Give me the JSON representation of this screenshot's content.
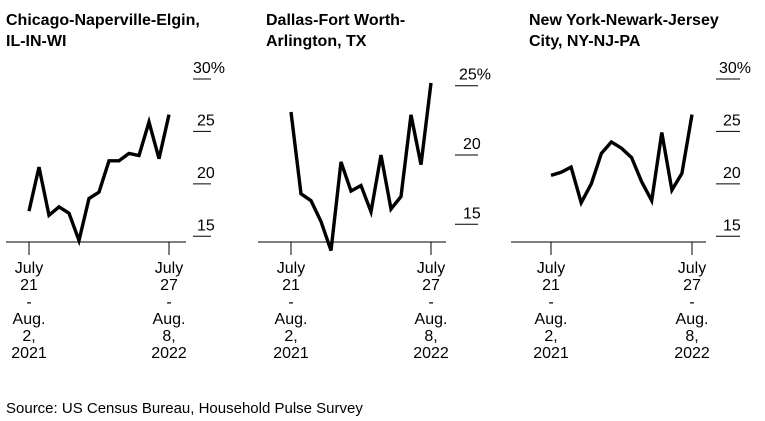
{
  "source": "Source: US Census Bureau, Household Pulse Survey",
  "colors": {
    "line": "#000000",
    "background": "#ffffff"
  },
  "chart_data": [
    {
      "type": "line",
      "title_lines": [
        "Chicago-Naperville-Elgin,",
        "IL-IN-WI"
      ],
      "x_tick_labels": [
        {
          "lines": [
            "July",
            "21",
            "-",
            "Aug.",
            "2,",
            "2021"
          ]
        },
        {
          "lines": [
            "July",
            "27",
            "-",
            "Aug.",
            "8,",
            "2022"
          ]
        }
      ],
      "y_ticks": [
        {
          "value": 30,
          "label": "30%"
        },
        {
          "value": 25,
          "label": "25"
        },
        {
          "value": 20,
          "label": "20"
        },
        {
          "value": 15,
          "label": "15"
        }
      ],
      "ylim": [
        13.5,
        32
      ],
      "grid": false,
      "series": [
        {
          "values": [
            17.4,
            21.6,
            17.0,
            17.8,
            17.2,
            14.6,
            18.6,
            19.2,
            22.2,
            22.2,
            22.9,
            22.7,
            25.9,
            22.4,
            26.6
          ]
        }
      ]
    },
    {
      "type": "line",
      "title_lines": [
        "Dallas-Fort Worth-",
        "Arlington, TX"
      ],
      "x_tick_labels": [
        {
          "lines": [
            "July",
            "21",
            "-",
            "Aug.",
            "2,",
            "2021"
          ]
        },
        {
          "lines": [
            "July",
            "27",
            "-",
            "Aug.",
            "8,",
            "2022"
          ]
        }
      ],
      "y_ticks": [
        {
          "value": 25,
          "label": "25%"
        },
        {
          "value": 20,
          "label": "20"
        },
        {
          "value": 15,
          "label": "15"
        }
      ],
      "ylim": [
        13.0,
        27.0
      ],
      "grid": false,
      "series": [
        {
          "values": [
            23.1,
            17.2,
            16.7,
            15.2,
            13.1,
            19.5,
            17.4,
            17.8,
            15.9,
            20.0,
            16.1,
            17.0,
            22.9,
            19.3,
            25.2
          ]
        }
      ]
    },
    {
      "type": "line",
      "title_lines": [
        "New York-Newark-Jersey",
        "City, NY-NJ-PA"
      ],
      "x_tick_labels": [
        {
          "lines": [
            "July",
            "21",
            "-",
            "Aug.",
            "2,",
            "2021"
          ]
        },
        {
          "lines": [
            "July",
            "27",
            "-",
            "Aug.",
            "8,",
            "2022"
          ]
        }
      ],
      "y_ticks": [
        {
          "value": 30,
          "label": "30%"
        },
        {
          "value": 25,
          "label": "25"
        },
        {
          "value": 20,
          "label": "20"
        },
        {
          "value": 15,
          "label": "15"
        }
      ],
      "ylim": [
        13.5,
        32
      ],
      "grid": false,
      "series": [
        {
          "values": [
            20.8,
            21.1,
            21.6,
            18.2,
            20.0,
            22.9,
            24.0,
            23.4,
            22.5,
            20.2,
            18.4,
            24.9,
            19.4,
            21.0,
            26.6
          ]
        }
      ]
    }
  ]
}
